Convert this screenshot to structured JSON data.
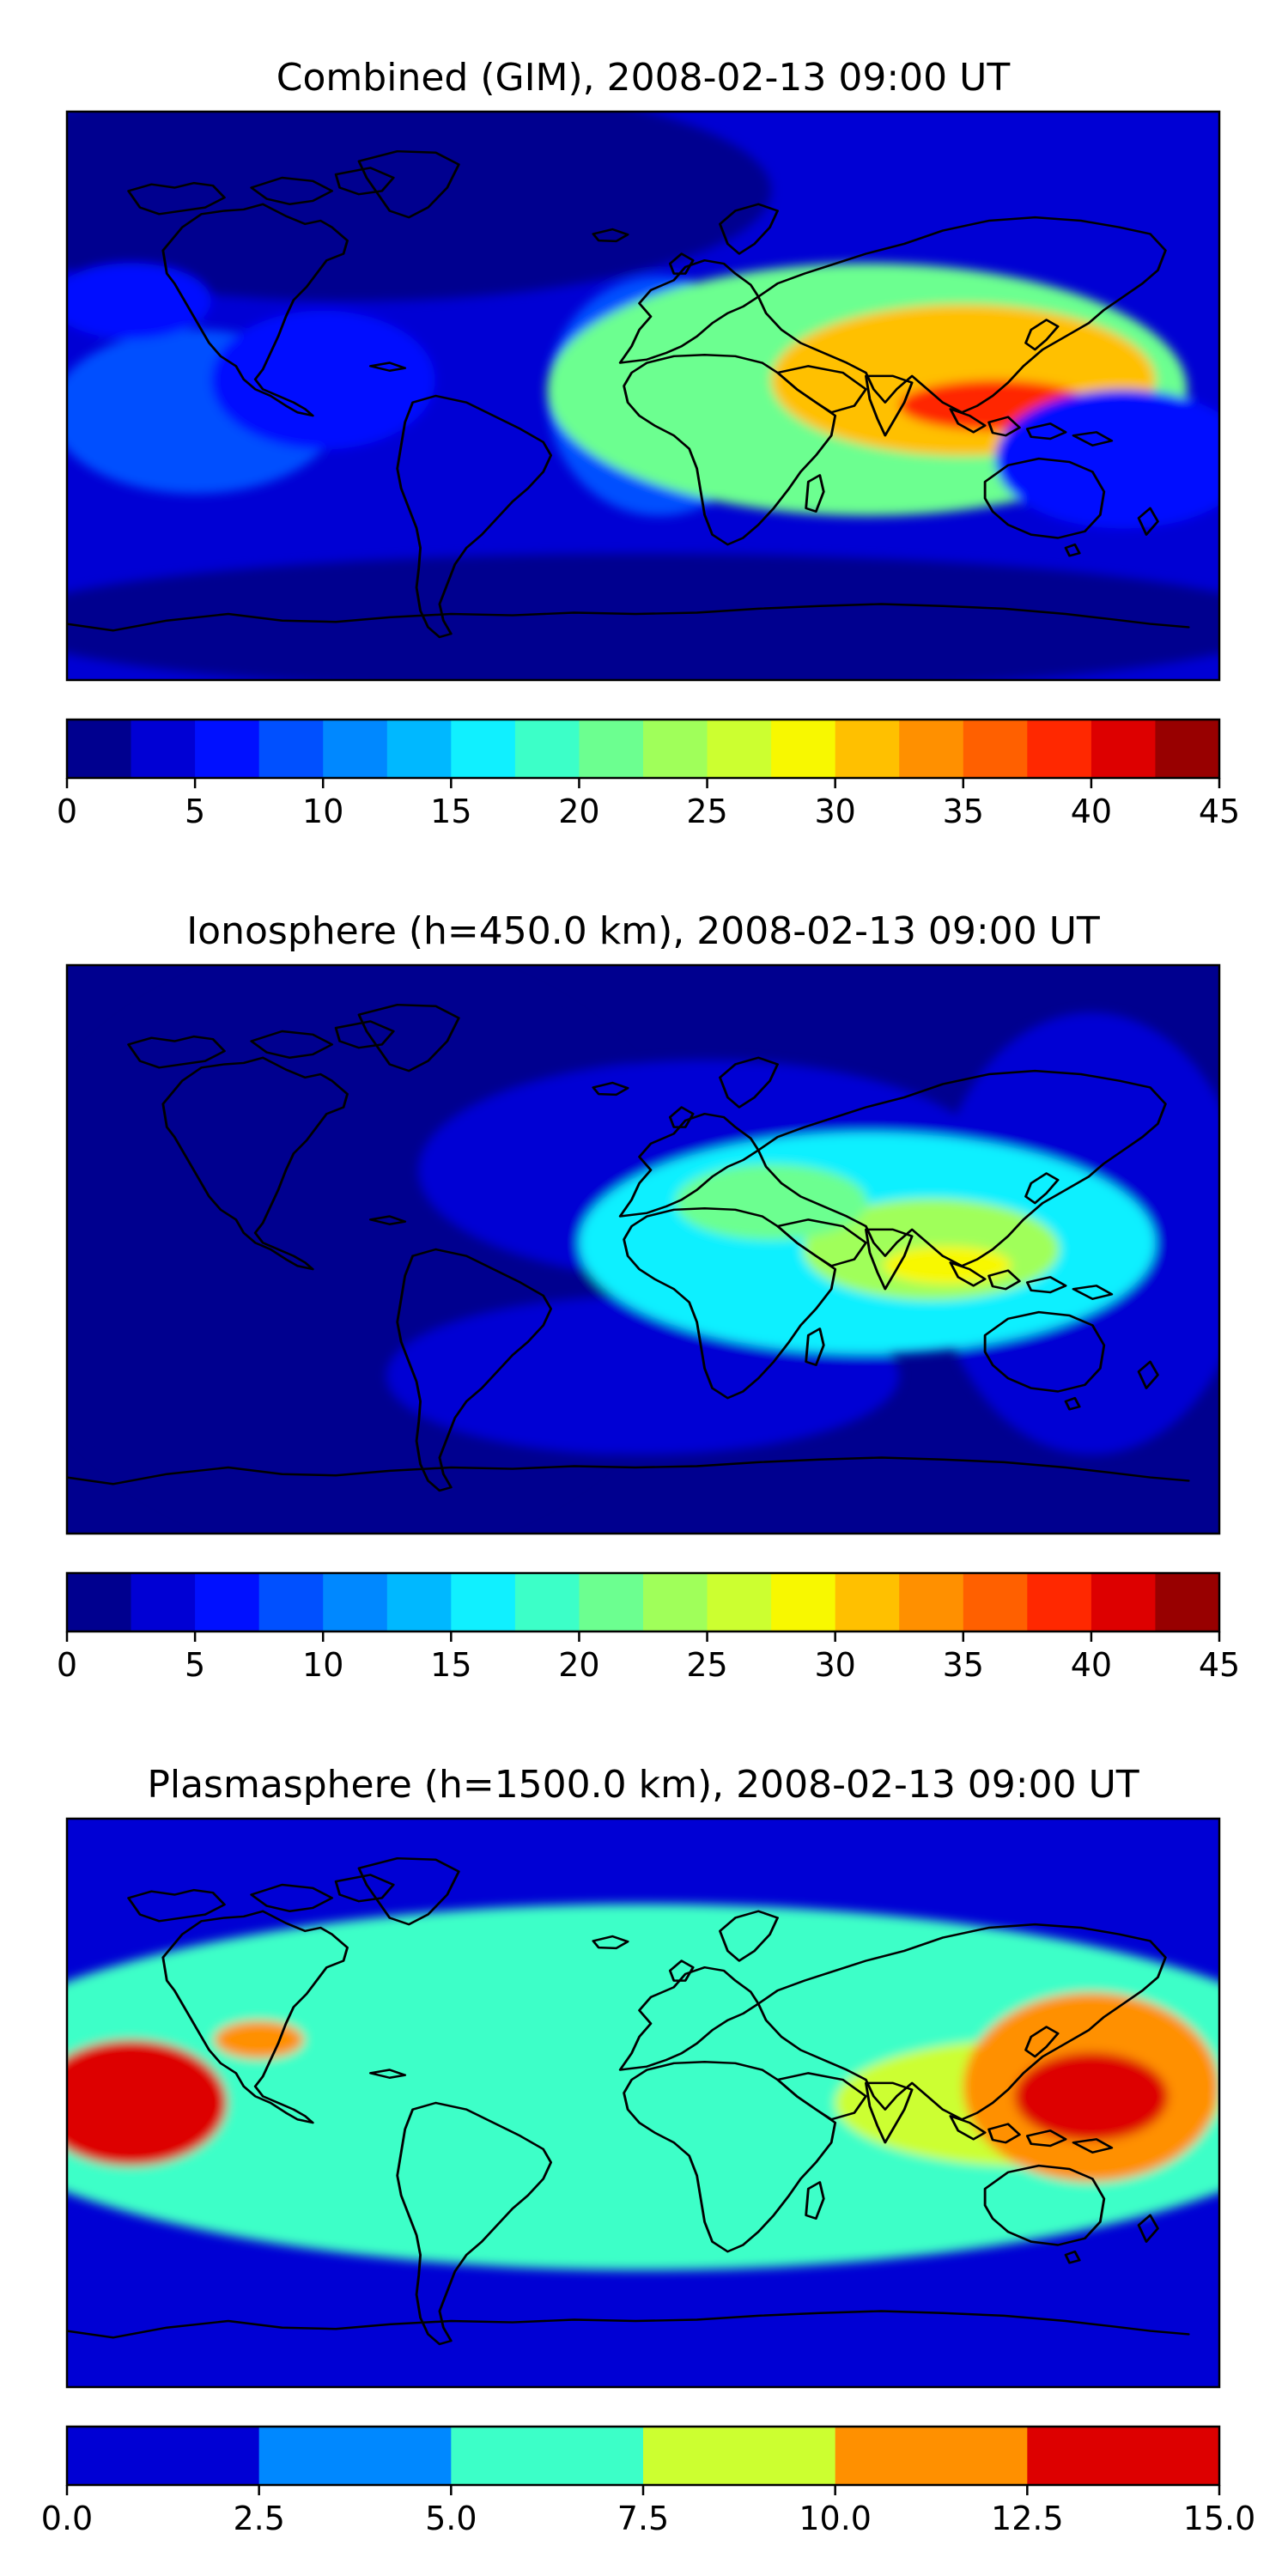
{
  "chart_data": [
    {
      "type": "heatmap",
      "title": "Combined (GIM), 2008-02-13 09:00 UT",
      "colorbar": {
        "ticks": [
          "0",
          "5",
          "10",
          "15",
          "20",
          "25",
          "30",
          "35",
          "40",
          "45"
        ],
        "levels": [
          0,
          2.5,
          5,
          7.5,
          10,
          12.5,
          15,
          17.5,
          20,
          22.5,
          25,
          27.5,
          30,
          32.5,
          35,
          37.5,
          40,
          42.5,
          45
        ],
        "colors": [
          "#00008f",
          "#0000d4",
          "#0010ff",
          "#0050ff",
          "#0088ff",
          "#00b8ff",
          "#10f0ff",
          "#3cffc8",
          "#6cff90",
          "#a0ff5a",
          "#ccff30",
          "#f8f800",
          "#ffc000",
          "#ff9000",
          "#ff6000",
          "#ff2800",
          "#dd0000",
          "#980000"
        ],
        "range": [
          0,
          45
        ]
      },
      "background_level": 3,
      "features": [
        {
          "lon": -90,
          "lat": 65,
          "rx": 130,
          "ry": 35,
          "level": -1.5
        },
        {
          "lon": 0,
          "lat": -72,
          "rx": 200,
          "ry": 22,
          "level": -0.5
        },
        {
          "lon": -140,
          "lat": -5,
          "rx": 45,
          "ry": 26,
          "level": 9
        },
        {
          "lon": -100,
          "lat": 5,
          "rx": 35,
          "ry": 22,
          "level": 7
        },
        {
          "lon": -160,
          "lat": 30,
          "rx": 25,
          "ry": 12,
          "level": 7
        },
        {
          "lon": 5,
          "lat": 0,
          "rx": 35,
          "ry": 38,
          "level": 8
        },
        {
          "lon": 70,
          "lat": 2,
          "rx": 100,
          "ry": 40,
          "level": 20
        },
        {
          "lon": 100,
          "lat": 5,
          "rx": 60,
          "ry": 24,
          "level": 32
        },
        {
          "lon": 110,
          "lat": -3,
          "rx": 30,
          "ry": 8,
          "level": 38
        },
        {
          "lon": 150,
          "lat": -20,
          "rx": 40,
          "ry": 22,
          "level": 5
        }
      ]
    },
    {
      "type": "heatmap",
      "title": "Ionosphere  (h=450.0 km), 2008-02-13 09:00 UT",
      "colorbar": {
        "ticks": [
          "0",
          "5",
          "10",
          "15",
          "20",
          "25",
          "30",
          "35",
          "40",
          "45"
        ],
        "levels": [
          0,
          2.5,
          5,
          7.5,
          10,
          12.5,
          15,
          17.5,
          20,
          22.5,
          25,
          27.5,
          30,
          32.5,
          35,
          37.5,
          40,
          42.5,
          45
        ],
        "colors": [
          "#00008f",
          "#0000d4",
          "#0010ff",
          "#0050ff",
          "#0088ff",
          "#00b8ff",
          "#10f0ff",
          "#3cffc8",
          "#6cff90",
          "#a0ff5a",
          "#ccff30",
          "#f8f800",
          "#ffc000",
          "#ff9000",
          "#ff6000",
          "#ff2800",
          "#dd0000",
          "#980000"
        ],
        "range": [
          0,
          45
        ]
      },
      "background_level": 1,
      "features": [
        {
          "lon": -90,
          "lat": 0,
          "rx": 110,
          "ry": 95,
          "level": -2
        },
        {
          "lon": 140,
          "lat": 5,
          "rx": 50,
          "ry": 70,
          "level": 4.5
        },
        {
          "lon": 20,
          "lat": 25,
          "rx": 90,
          "ry": 35,
          "level": 4
        },
        {
          "lon": 0,
          "lat": -40,
          "rx": 80,
          "ry": 25,
          "level": 3
        },
        {
          "lon": 70,
          "lat": 2,
          "rx": 90,
          "ry": 35,
          "level": 16
        },
        {
          "lon": 90,
          "lat": 0,
          "rx": 40,
          "ry": 16,
          "level": 24
        },
        {
          "lon": 40,
          "lat": 15,
          "rx": 30,
          "ry": 12,
          "level": 20
        },
        {
          "lon": 95,
          "lat": -5,
          "rx": 20,
          "ry": 6,
          "level": 29
        }
      ]
    },
    {
      "type": "heatmap",
      "title": "Plasmasphere (h=1500.0 km), 2008-02-13 09:00 UT",
      "colorbar": {
        "ticks": [
          "0.0",
          "2.5",
          "5.0",
          "7.5",
          "10.0",
          "12.5",
          "15.0"
        ],
        "levels": [
          0,
          2.5,
          5,
          7.5,
          10,
          12.5,
          15
        ],
        "colors": [
          "#0000d4",
          "#0088ff",
          "#3cffc8",
          "#ccff30",
          "#ff9000",
          "#dd0000"
        ],
        "range": [
          0,
          15
        ]
      },
      "background_level": 1.5,
      "features": [
        {
          "lon": 0,
          "lat": 5,
          "rx": 220,
          "ry": 58,
          "level": 5
        },
        {
          "lon": 0,
          "lat": 5,
          "rx": 220,
          "ry": 42,
          "level": 6.5
        },
        {
          "lon": -160,
          "lat": 0,
          "rx": 30,
          "ry": 20,
          "level": 12.5
        },
        {
          "lon": -120,
          "lat": 20,
          "rx": 14,
          "ry": 6,
          "level": 10
        },
        {
          "lon": 120,
          "lat": 0,
          "rx": 60,
          "ry": 20,
          "level": 9.5
        },
        {
          "lon": 140,
          "lat": 5,
          "rx": 40,
          "ry": 30,
          "level": 10.5
        },
        {
          "lon": 140,
          "lat": 2,
          "rx": 24,
          "ry": 14,
          "level": 14
        }
      ]
    }
  ]
}
